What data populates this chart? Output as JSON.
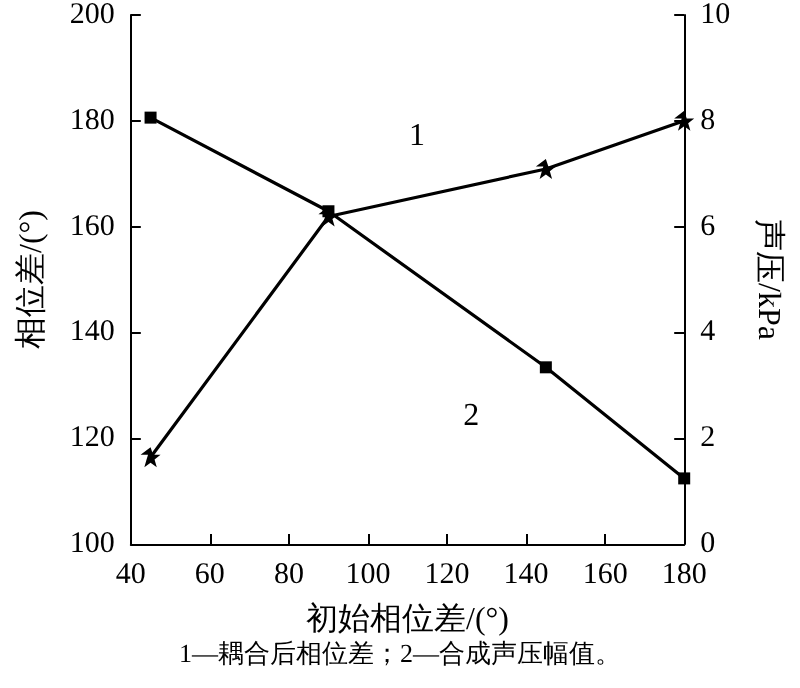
{
  "chart_data": {
    "type": "line",
    "xlabel": "初始相位差/(°)",
    "ylabel": "相位差/(°)",
    "y2label": "声压/kPa",
    "x": [
      45,
      90,
      145,
      180
    ],
    "series": [
      {
        "name": "1",
        "color": "#000000",
        "marker": "star",
        "values": [
          116.4,
          161.9,
          170.9,
          180
        ]
      },
      {
        "name": "2",
        "color": "#000000",
        "marker": "square",
        "axis": "y2",
        "values": [
          8.06,
          6.29,
          3.34,
          1.24
        ]
      }
    ],
    "xlim": [
      40,
      180
    ],
    "xticks": [
      40,
      60,
      80,
      100,
      120,
      140,
      160,
      180
    ],
    "ylim": [
      100,
      200
    ],
    "yticks": [
      100,
      120,
      140,
      160,
      180,
      200
    ],
    "y2lim": [
      0,
      10
    ],
    "y2ticks": [
      0,
      2,
      4,
      6,
      8,
      10
    ],
    "grid": false,
    "legend": false,
    "line_style": "solid",
    "annotations": [
      "1—耦合后相位差；2—合成声压幅值。"
    ]
  }
}
